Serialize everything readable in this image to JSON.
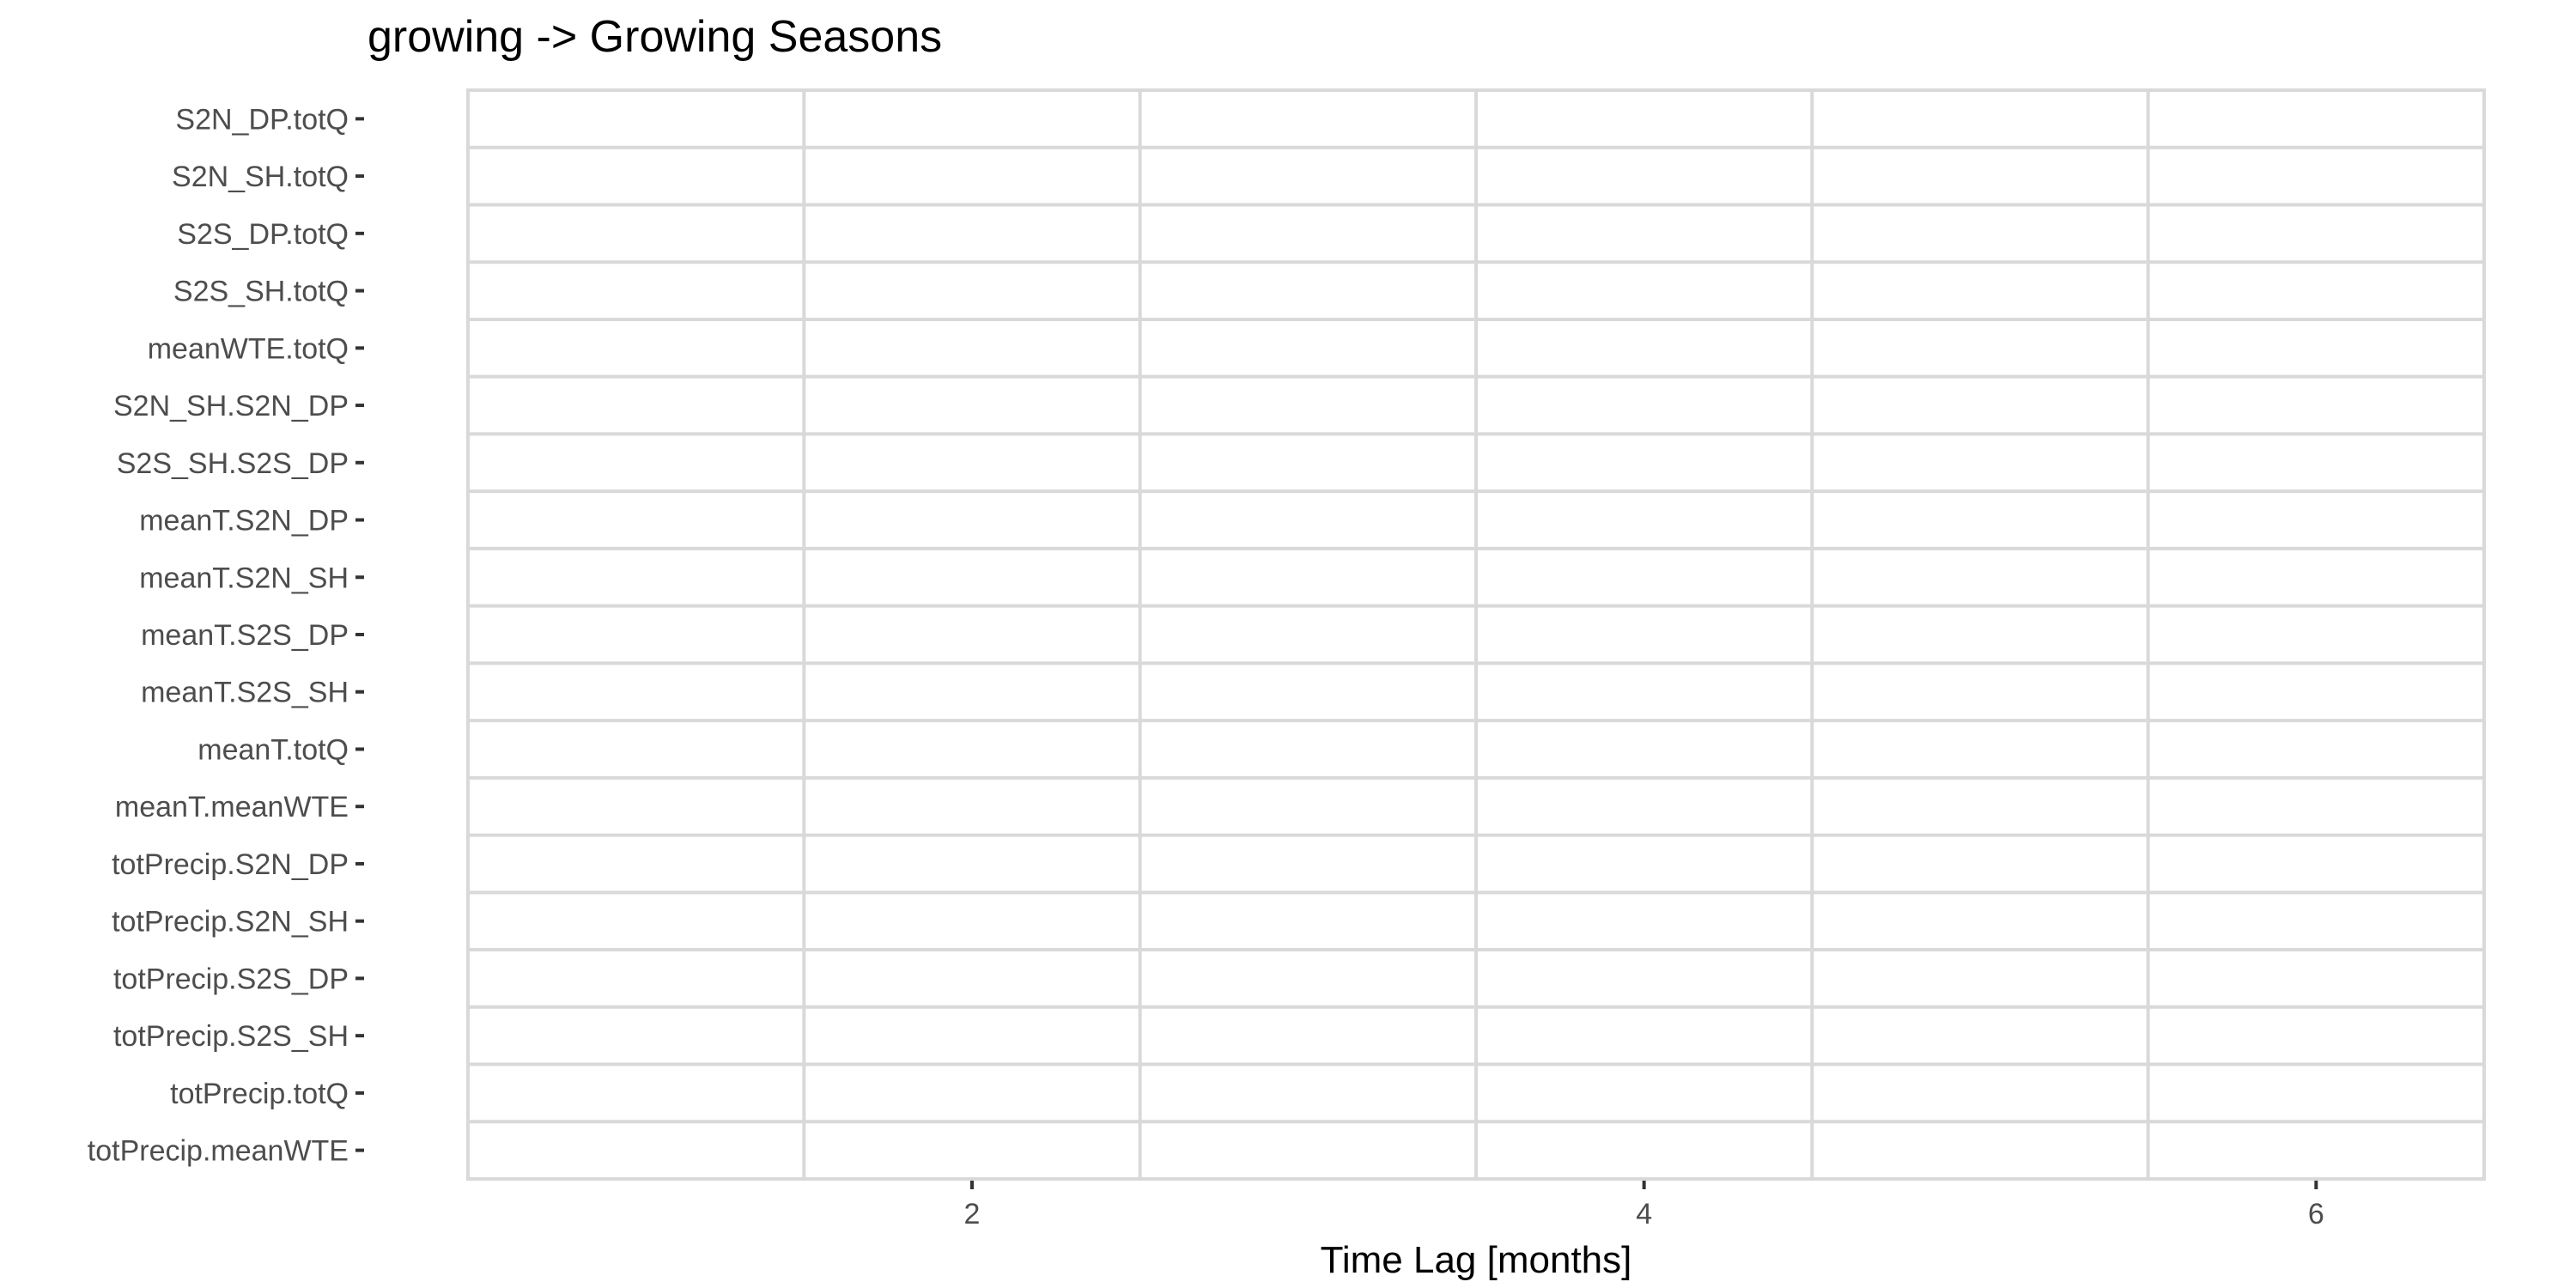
{
  "chart_data": {
    "type": "heatmap",
    "title": "growing -> Growing Seasons",
    "xlabel": "Time Lag [months]",
    "ylabel": "",
    "x_categories": [
      1,
      2,
      3,
      4,
      5,
      6
    ],
    "x_ticks": [
      2,
      4,
      6
    ],
    "xlim": [
      0.5,
      6.5
    ],
    "y_categories": [
      "S2N_DP.totQ",
      "S2N_SH.totQ",
      "S2S_DP.totQ",
      "S2S_SH.totQ",
      "meanWTE.totQ",
      "S2N_SH.S2N_DP",
      "S2S_SH.S2S_DP",
      "meanT.S2N_DP",
      "meanT.S2N_SH",
      "meanT.S2S_DP",
      "meanT.S2S_SH",
      "meanT.totQ",
      "meanT.meanWTE",
      "totPrecip.S2N_DP",
      "totPrecip.S2N_SH",
      "totPrecip.S2S_DP",
      "totPrecip.S2S_SH",
      "totPrecip.totQ",
      "totPrecip.meanWTE"
    ],
    "grid": true,
    "legend": "none",
    "colors": {
      "grid": "#d9d9d9",
      "background": "#ffffff",
      "tick_text": "#4d4d4d",
      "tick_mark": "#333333"
    }
  }
}
